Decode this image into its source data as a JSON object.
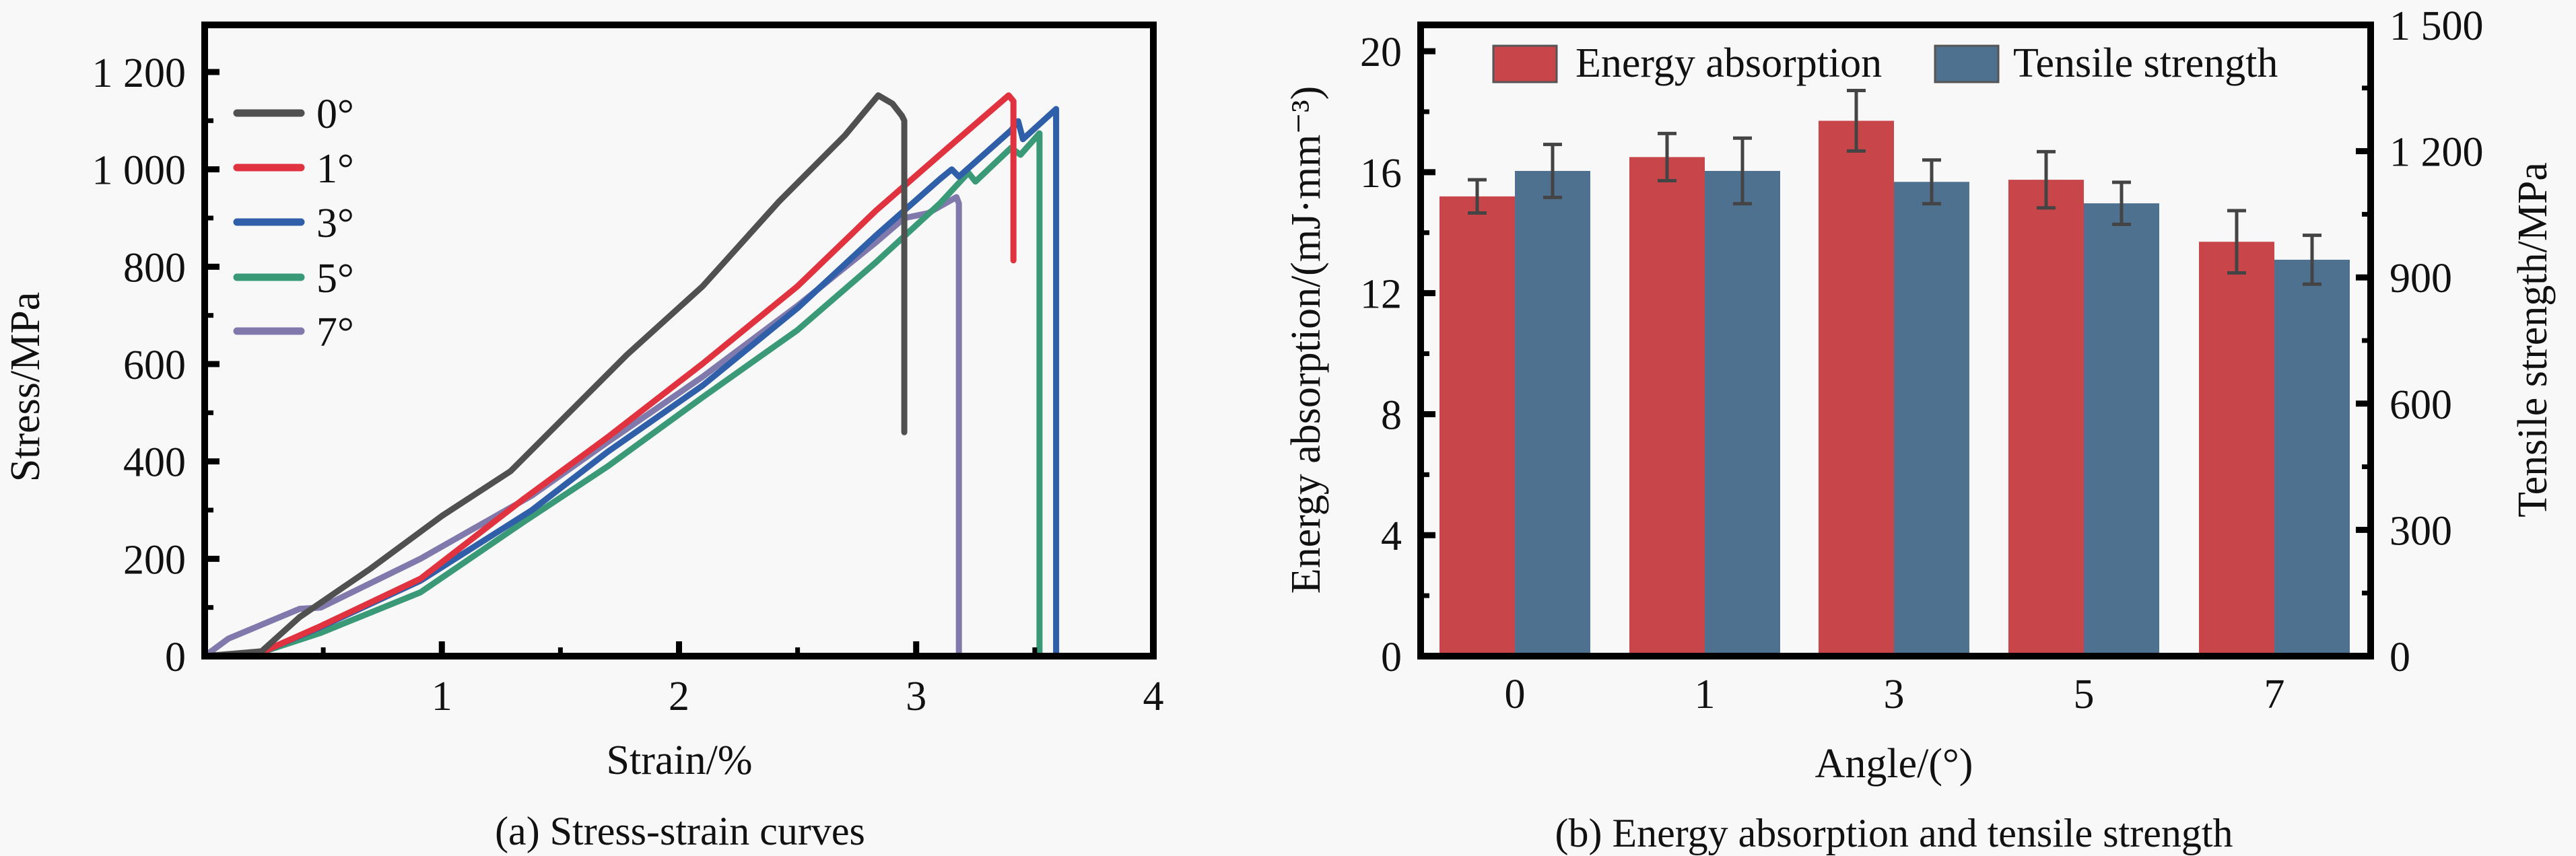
{
  "figure": {
    "captions": {
      "a": "(a) Stress-strain curves",
      "b": "(b) Energy absorption and tensile strength"
    }
  },
  "chart_data": [
    {
      "id": "a",
      "type": "line",
      "title": "(a) Stress-strain curves",
      "xlabel": "Strain/%",
      "ylabel": "Stress/MPa",
      "xlim": [
        0,
        4
      ],
      "ylim": [
        0,
        1300
      ],
      "xticks": [
        1,
        2,
        3,
        4
      ],
      "xtick_labels": [
        "1",
        "2",
        "3",
        "4"
      ],
      "yticks": [
        0,
        200,
        400,
        600,
        800,
        1000,
        1200
      ],
      "ytick_labels": [
        "0",
        "200",
        "400",
        "600",
        "800",
        "1 000",
        "1 200"
      ],
      "grid": false,
      "legend_position": "top-left",
      "series": [
        {
          "name": "0°",
          "color": "#505050",
          "x": [
            0.0,
            0.24,
            0.4,
            0.7,
            1.0,
            1.29,
            1.78,
            2.1,
            2.42,
            2.7,
            2.84,
            2.9,
            2.94,
            2.95,
            2.95
          ],
          "y": [
            0,
            10,
            80,
            180,
            288,
            380,
            619,
            760,
            933,
            1070,
            1152,
            1135,
            1110,
            1100,
            460
          ]
        },
        {
          "name": "1°",
          "color": "#e0323f",
          "x": [
            0.0,
            0.24,
            0.49,
            0.91,
            1.34,
            1.7,
            2.1,
            2.5,
            2.83,
            3.1,
            3.39,
            3.41,
            3.41
          ],
          "y": [
            0,
            8,
            62,
            159,
            321,
            450,
            601,
            760,
            915,
            1030,
            1152,
            1140,
            813
          ]
        },
        {
          "name": "3°",
          "color": "#2f5fa8",
          "x": [
            0.0,
            0.24,
            0.49,
            0.91,
            1.38,
            1.7,
            2.1,
            2.5,
            2.83,
            3.1,
            3.15,
            3.18,
            3.4,
            3.43,
            3.45,
            3.59,
            3.59
          ],
          "y": [
            0,
            8,
            60,
            155,
            300,
            420,
            556,
            715,
            864,
            980,
            1000,
            985,
            1080,
            1099,
            1062,
            1124,
            0
          ]
        },
        {
          "name": "5°",
          "color": "#3a9a78",
          "x": [
            0.0,
            0.24,
            0.49,
            0.91,
            1.34,
            1.7,
            2.1,
            2.5,
            2.83,
            3.1,
            3.22,
            3.25,
            3.4,
            3.44,
            3.52,
            3.52
          ],
          "y": [
            0,
            8,
            48,
            131,
            274,
            390,
            532,
            670,
            809,
            930,
            993,
            975,
            1044,
            1030,
            1074,
            0
          ]
        },
        {
          "name": "7°",
          "color": "#8079ac",
          "x": [
            0.0,
            0.1,
            0.4,
            0.49,
            0.91,
            1.38,
            1.7,
            2.1,
            2.5,
            2.83,
            2.95,
            3.05,
            3.17,
            3.18,
            3.18
          ],
          "y": [
            0,
            36,
            97,
            100,
            200,
            330,
            440,
            574,
            720,
            850,
            900,
            910,
            943,
            930,
            0
          ]
        }
      ]
    },
    {
      "id": "b",
      "type": "bar",
      "title": "(b) Energy absorption and tensile strength",
      "xlabel": "Angle/(°)",
      "ylabel": "Energy absorption/(mJ·mm⁻³)",
      "ylabel_right": "Tensile strength/MPa",
      "categories": [
        "0",
        "1",
        "3",
        "5",
        "7"
      ],
      "ylim": [
        0,
        20.87
      ],
      "ylim_right": [
        0,
        1500
      ],
      "yticks": [
        0,
        4,
        8,
        12,
        16,
        20
      ],
      "ytick_labels": [
        "0",
        "4",
        "8",
        "12",
        "16",
        "20"
      ],
      "yticks_right": [
        0,
        300,
        600,
        900,
        1200,
        1500
      ],
      "ytick_labels_right": [
        "0",
        "300",
        "600",
        "900",
        "1 200",
        "1 500"
      ],
      "grid": false,
      "legend_position": "top",
      "series": [
        {
          "name": "Energy absorption",
          "axis": "left",
          "color": "#c84649",
          "values": [
            15.2,
            16.5,
            17.7,
            15.75,
            13.7
          ],
          "errors": [
            0.55,
            0.78,
            1.0,
            0.93,
            1.03
          ]
        },
        {
          "name": "Tensile strength",
          "axis": "right",
          "color": "#4f7190",
          "values": [
            1153,
            1153,
            1127,
            1076,
            942
          ],
          "errors": [
            63,
            78,
            52,
            50,
            58
          ]
        }
      ]
    }
  ]
}
